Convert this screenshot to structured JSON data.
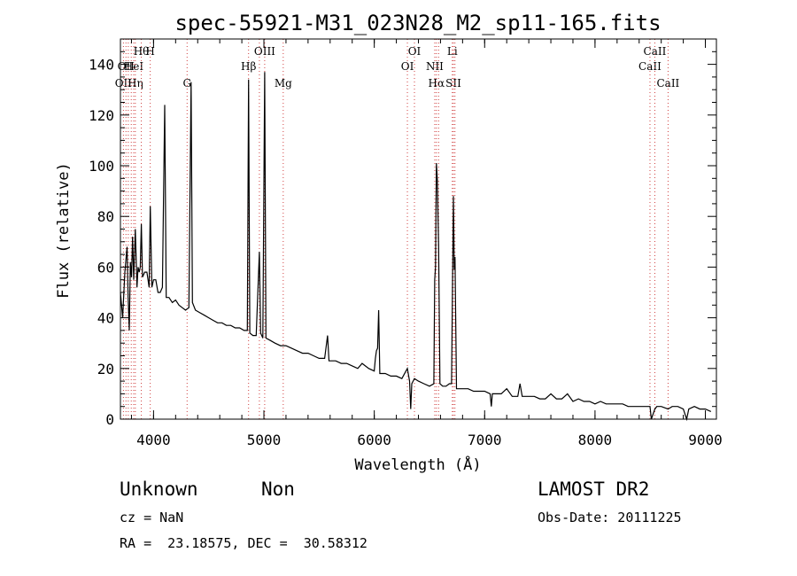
{
  "chart_data": {
    "type": "line",
    "title": "spec-55921-M31_023N28_M2_sp11-165.fits",
    "xlabel": "Wavelength (Å)",
    "ylabel": "Flux (relative)",
    "xlim": [
      3700,
      9100
    ],
    "ylim": [
      0,
      150
    ],
    "xticks": [
      4000,
      5000,
      6000,
      7000,
      8000,
      9000
    ],
    "yticks": [
      0,
      20,
      40,
      60,
      80,
      100,
      120,
      140
    ],
    "grid": false,
    "line_color": "#000000",
    "marker_color": "#d04040",
    "series": [
      {
        "points": [
          [
            3700,
            50
          ],
          [
            3720,
            40
          ],
          [
            3740,
            58
          ],
          [
            3760,
            68
          ],
          [
            3770,
            48
          ],
          [
            3780,
            35
          ],
          [
            3790,
            62
          ],
          [
            3800,
            56
          ],
          [
            3810,
            72
          ],
          [
            3820,
            55
          ],
          [
            3835,
            75
          ],
          [
            3850,
            52
          ],
          [
            3860,
            60
          ],
          [
            3870,
            58
          ],
          [
            3880,
            60
          ],
          [
            3889,
            77
          ],
          [
            3900,
            56
          ],
          [
            3920,
            58
          ],
          [
            3940,
            58
          ],
          [
            3960,
            52
          ],
          [
            3970,
            84
          ],
          [
            3985,
            52
          ],
          [
            4000,
            55
          ],
          [
            4020,
            55
          ],
          [
            4040,
            50
          ],
          [
            4060,
            50
          ],
          [
            4080,
            52
          ],
          [
            4101,
            124
          ],
          [
            4115,
            48
          ],
          [
            4140,
            48
          ],
          [
            4170,
            46
          ],
          [
            4200,
            47
          ],
          [
            4230,
            45
          ],
          [
            4260,
            44
          ],
          [
            4290,
            43
          ],
          [
            4320,
            44
          ],
          [
            4340,
            133
          ],
          [
            4352,
            46
          ],
          [
            4380,
            43
          ],
          [
            4420,
            42
          ],
          [
            4460,
            41
          ],
          [
            4500,
            40
          ],
          [
            4540,
            39
          ],
          [
            4580,
            38
          ],
          [
            4620,
            38
          ],
          [
            4660,
            37
          ],
          [
            4700,
            37
          ],
          [
            4740,
            36
          ],
          [
            4780,
            36
          ],
          [
            4820,
            35
          ],
          [
            4850,
            35
          ],
          [
            4861,
            134
          ],
          [
            4872,
            34
          ],
          [
            4900,
            33
          ],
          [
            4930,
            33
          ],
          [
            4959,
            66
          ],
          [
            4970,
            34
          ],
          [
            4990,
            32
          ],
          [
            5007,
            137
          ],
          [
            5018,
            32
          ],
          [
            5060,
            31
          ],
          [
            5100,
            30
          ],
          [
            5150,
            29
          ],
          [
            5200,
            29
          ],
          [
            5250,
            28
          ],
          [
            5300,
            27
          ],
          [
            5350,
            26
          ],
          [
            5400,
            26
          ],
          [
            5450,
            25
          ],
          [
            5500,
            24
          ],
          [
            5550,
            24
          ],
          [
            5577,
            33
          ],
          [
            5590,
            23
          ],
          [
            5650,
            23
          ],
          [
            5700,
            22
          ],
          [
            5750,
            22
          ],
          [
            5800,
            21
          ],
          [
            5850,
            20
          ],
          [
            5890,
            22
          ],
          [
            5950,
            20
          ],
          [
            6000,
            19
          ],
          [
            6010,
            24
          ],
          [
            6020,
            27
          ],
          [
            6030,
            28
          ],
          [
            6040,
            43
          ],
          [
            6050,
            18
          ],
          [
            6100,
            18
          ],
          [
            6150,
            17
          ],
          [
            6200,
            17
          ],
          [
            6250,
            16
          ],
          [
            6300,
            20
          ],
          [
            6320,
            15
          ],
          [
            6330,
            4
          ],
          [
            6340,
            14
          ],
          [
            6364,
            16
          ],
          [
            6400,
            15
          ],
          [
            6450,
            14
          ],
          [
            6500,
            13
          ],
          [
            6540,
            14
          ],
          [
            6548,
            55
          ],
          [
            6555,
            60
          ],
          [
            6563,
            101
          ],
          [
            6572,
            94
          ],
          [
            6583,
            68
          ],
          [
            6595,
            14
          ],
          [
            6620,
            13
          ],
          [
            6650,
            13
          ],
          [
            6680,
            14
          ],
          [
            6700,
            14
          ],
          [
            6717,
            88
          ],
          [
            6725,
            59
          ],
          [
            6731,
            64
          ],
          [
            6745,
            12
          ],
          [
            6800,
            12
          ],
          [
            6850,
            12
          ],
          [
            6900,
            11
          ],
          [
            6950,
            11
          ],
          [
            7000,
            11
          ],
          [
            7050,
            10
          ],
          [
            7060,
            5
          ],
          [
            7070,
            10
          ],
          [
            7100,
            10
          ],
          [
            7150,
            10
          ],
          [
            7200,
            12
          ],
          [
            7250,
            9
          ],
          [
            7300,
            9
          ],
          [
            7320,
            14
          ],
          [
            7340,
            9
          ],
          [
            7400,
            9
          ],
          [
            7450,
            9
          ],
          [
            7500,
            8
          ],
          [
            7550,
            8
          ],
          [
            7600,
            10
          ],
          [
            7650,
            8
          ],
          [
            7700,
            8
          ],
          [
            7750,
            10
          ],
          [
            7800,
            7
          ],
          [
            7850,
            8
          ],
          [
            7900,
            7
          ],
          [
            7950,
            7
          ],
          [
            8000,
            6
          ],
          [
            8050,
            7
          ],
          [
            8100,
            6
          ],
          [
            8150,
            6
          ],
          [
            8200,
            6
          ],
          [
            8250,
            6
          ],
          [
            8300,
            5
          ],
          [
            8350,
            5
          ],
          [
            8400,
            5
          ],
          [
            8450,
            5
          ],
          [
            8498,
            5
          ],
          [
            8510,
            0
          ],
          [
            8542,
            4
          ],
          [
            8560,
            5
          ],
          [
            8600,
            5
          ],
          [
            8662,
            4
          ],
          [
            8700,
            5
          ],
          [
            8750,
            5
          ],
          [
            8800,
            4
          ],
          [
            8830,
            0
          ],
          [
            8850,
            4
          ],
          [
            8900,
            5
          ],
          [
            8950,
            4
          ],
          [
            9000,
            4
          ],
          [
            9050,
            3
          ]
        ]
      }
    ],
    "line_markers": [
      {
        "wavelength": 3727,
        "label": "OII",
        "row": 3
      },
      {
        "wavelength": 3750,
        "label": "OII",
        "row": 2
      },
      {
        "wavelength": 3771,
        "label": "",
        "row": 0
      },
      {
        "wavelength": 3798,
        "label": "",
        "row": 0
      },
      {
        "wavelength": 3820,
        "label": "HeI",
        "row": 2
      },
      {
        "wavelength": 3835,
        "label": "Hη",
        "row": 3
      },
      {
        "wavelength": 3889,
        "label": "Hθ",
        "row": 1
      },
      {
        "wavelength": 3970,
        "label": "H",
        "row": 1
      },
      {
        "wavelength": 4304,
        "label": "G",
        "row": 3
      },
      {
        "wavelength": 4861,
        "label": "Hβ",
        "row": 2
      },
      {
        "wavelength": 4959,
        "label": "",
        "row": 0
      },
      {
        "wavelength": 5007,
        "label": "OIII",
        "row": 1
      },
      {
        "wavelength": 5175,
        "label": "Mg",
        "row": 3
      },
      {
        "wavelength": 6300,
        "label": "OI",
        "row": 2
      },
      {
        "wavelength": 6364,
        "label": "OI",
        "row": 1
      },
      {
        "wavelength": 6548,
        "label": "NII",
        "row": 2
      },
      {
        "wavelength": 6563,
        "label": "Hα",
        "row": 3
      },
      {
        "wavelength": 6583,
        "label": "",
        "row": 0
      },
      {
        "wavelength": 6707,
        "label": "Li",
        "row": 1
      },
      {
        "wavelength": 6717,
        "label": "SII",
        "row": 3
      },
      {
        "wavelength": 6731,
        "label": "",
        "row": 0
      },
      {
        "wavelength": 8498,
        "label": "CaII",
        "row": 2
      },
      {
        "wavelength": 8542,
        "label": "CaII",
        "row": 1
      },
      {
        "wavelength": 8662,
        "label": "CaII",
        "row": 3
      }
    ]
  },
  "info": {
    "classification": "Unknown",
    "subclass": "Non",
    "survey": "LAMOST DR2",
    "cz": "cz = NaN",
    "obs_date": "Obs-Date: 20111225",
    "coords": "RA =  23.18575, DEC =  30.58312"
  }
}
